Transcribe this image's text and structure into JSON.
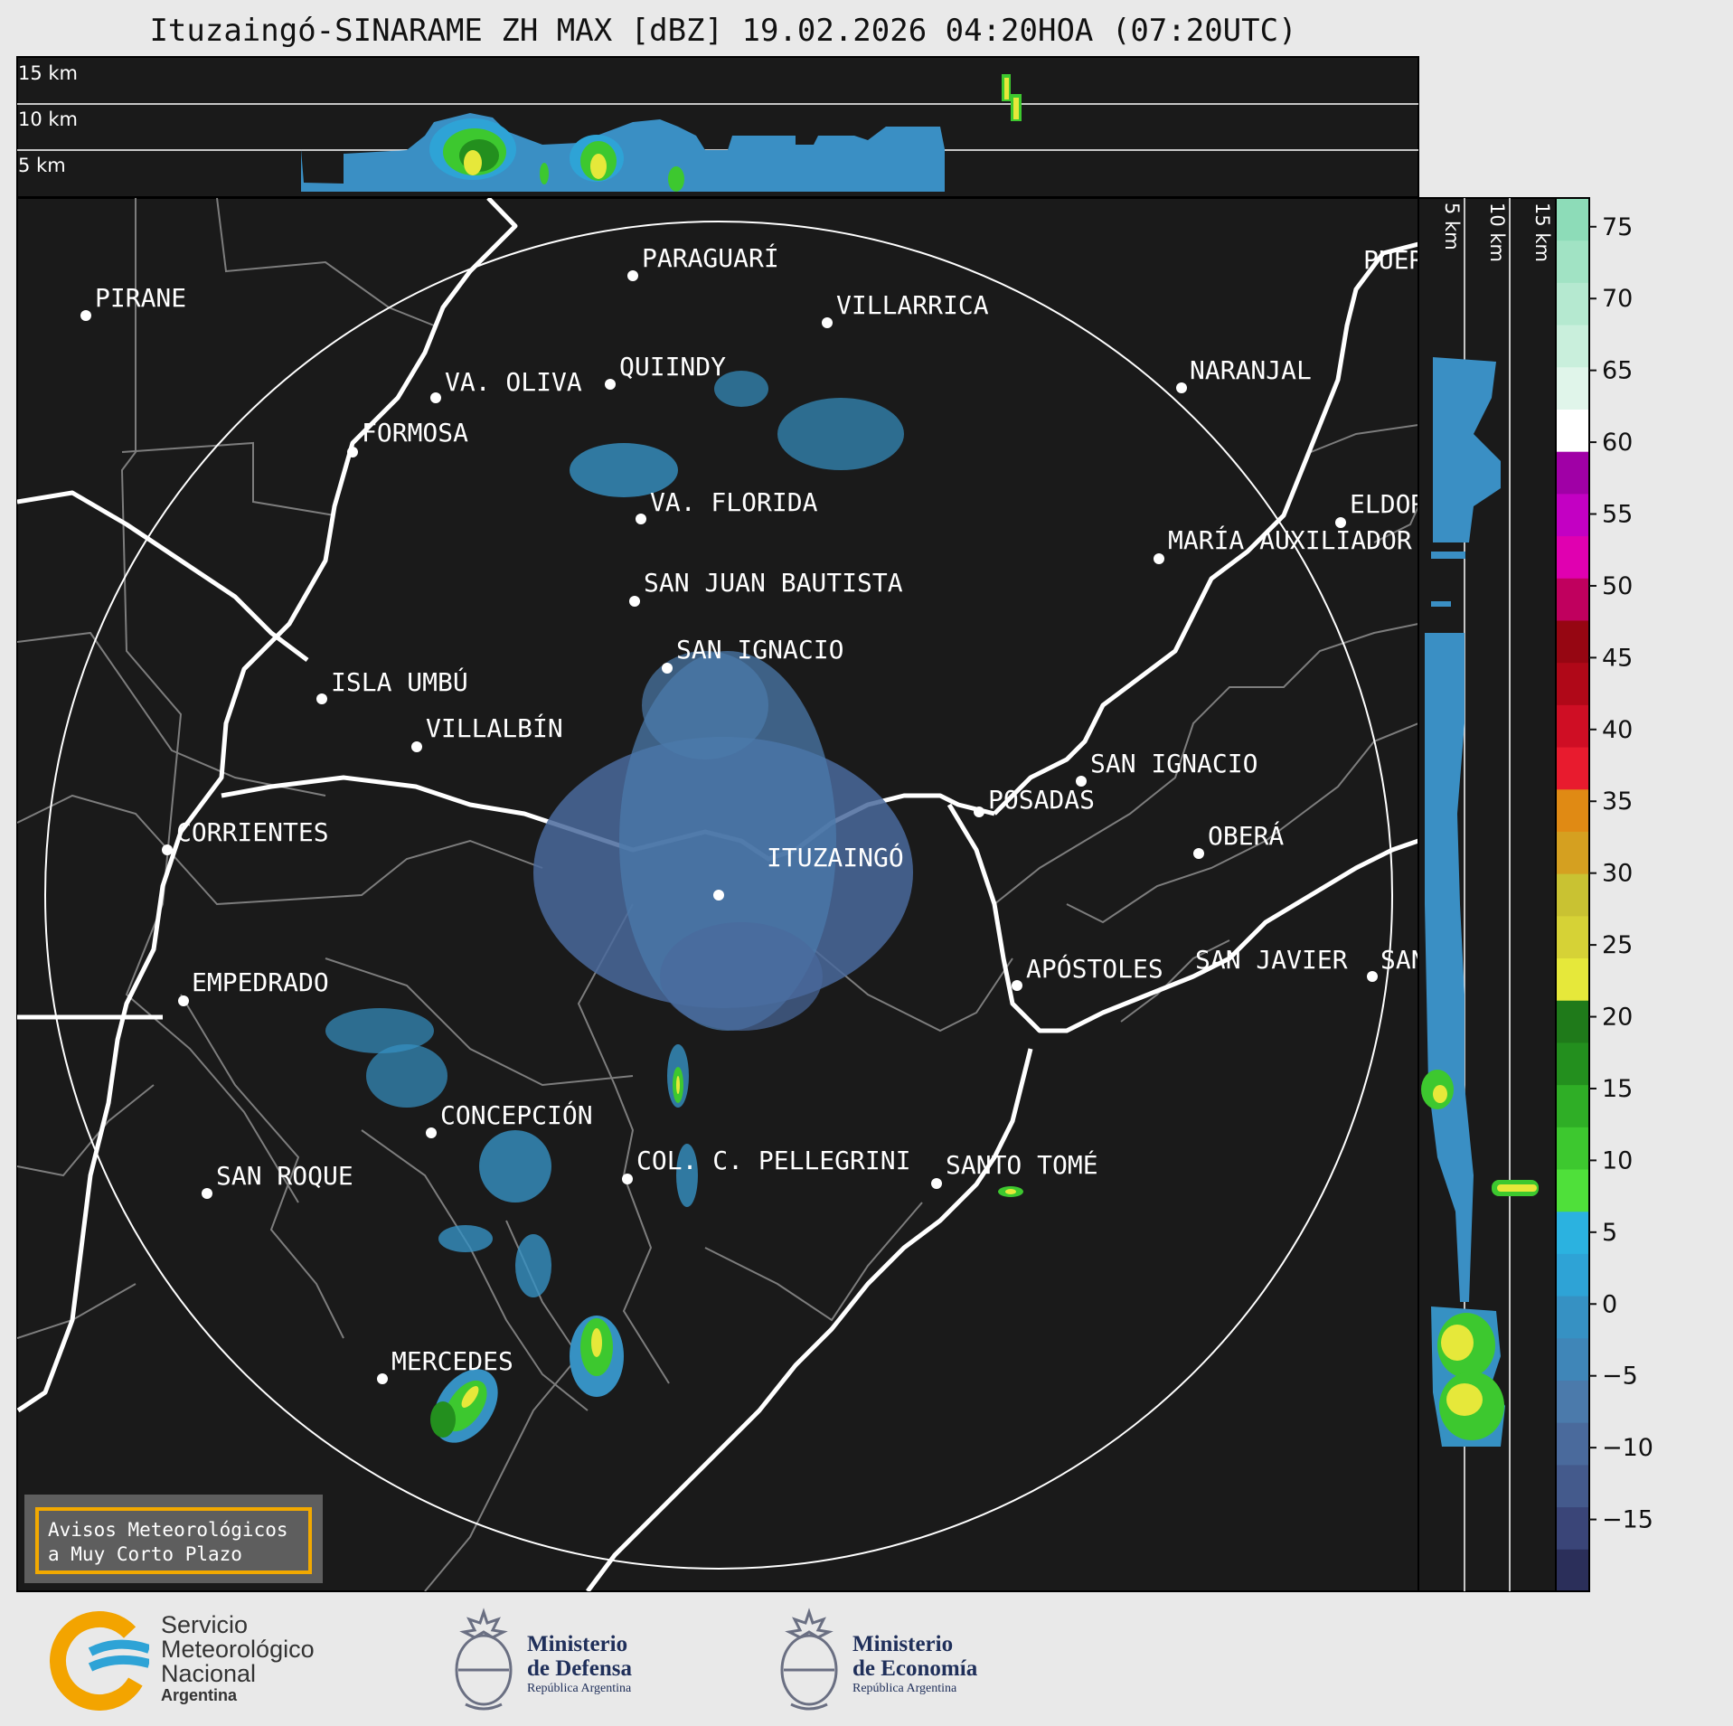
{
  "title": "Ituzaingó-SINARAME ZH MAX [dBZ] 19.02.2026 04:20HOA (07:20UTC)",
  "top_profile": {
    "height_labels": [
      "15 km",
      "10 km",
      "5 km"
    ]
  },
  "side_profile": {
    "height_labels": [
      "5 km",
      "10 km",
      "15 km"
    ]
  },
  "colorbar": {
    "unit": "dBZ",
    "ticks": [
      "75",
      "70",
      "65",
      "60",
      "55",
      "50",
      "45",
      "40",
      "35",
      "30",
      "25",
      "20",
      "15",
      "10",
      "5",
      "0",
      "−5",
      "−10",
      "−15"
    ],
    "colors": [
      "#2b2f5a",
      "#3a4578",
      "#445a8c",
      "#4a6a9c",
      "#4b7aab",
      "#3f86b8",
      "#3691c3",
      "#2ea3d6",
      "#2bb2e0",
      "#4fe03a",
      "#3dc82f",
      "#2fae26",
      "#238f1e",
      "#1f7a1a",
      "#e6e83a",
      "#d6d236",
      "#c9c232",
      "#d5a020",
      "#e08a14",
      "#e81b2e",
      "#cf0e24",
      "#b00818",
      "#960612",
      "#c0005e",
      "#e000b0",
      "#c300c3",
      "#a000a6",
      "#ffffff",
      "#e0f5ea",
      "#c9efdc",
      "#b5e9d0",
      "#a1e3c4",
      "#8ddcb8"
    ]
  },
  "map": {
    "radar_site": "ITUZAINGÓ",
    "range_ring": "visible",
    "cities": [
      {
        "name": "PIRANE"
      },
      {
        "name": "PARAGUARÍ"
      },
      {
        "name": "VILLARRICA"
      },
      {
        "name": "QUIINDY"
      },
      {
        "name": "VA. OLIVA"
      },
      {
        "name": "NARANJAL"
      },
      {
        "name": "FORMOSA"
      },
      {
        "name": "VA. FLORIDA"
      },
      {
        "name": "ELDOR"
      },
      {
        "name": "MARÍA AUXILIADOR"
      },
      {
        "name": "SAN JUAN BAUTISTA"
      },
      {
        "name": "SAN IGNACIO"
      },
      {
        "name": "ISLA UMBÚ"
      },
      {
        "name": "VILLALBÍN"
      },
      {
        "name": "SAN IGNACIO"
      },
      {
        "name": "POSADAS"
      },
      {
        "name": "CORRIENTES"
      },
      {
        "name": "ITUZAINGÓ"
      },
      {
        "name": "OBERÁ"
      },
      {
        "name": "EMPEDRADO"
      },
      {
        "name": "APÓSTOLES"
      },
      {
        "name": "SAN JAVIER"
      },
      {
        "name": "SAN"
      },
      {
        "name": "CONCEPCIÓN"
      },
      {
        "name": "SAN ROQUE"
      },
      {
        "name": "COL. C. PELLEGRINI"
      },
      {
        "name": "SANTO TOMÉ"
      },
      {
        "name": "MERCEDES"
      },
      {
        "name": "PUER"
      }
    ]
  },
  "warning_box": {
    "line1": "Avisos Meteorológicos",
    "line2": "a Muy Corto Plazo"
  },
  "logos": {
    "smn": {
      "line1": "Servicio",
      "line2": "Meteorológico",
      "line3": "Nacional",
      "line4": "Argentina"
    },
    "defensa": {
      "line1": "Ministerio",
      "line2": "de Defensa",
      "line3": "República Argentina"
    },
    "economia": {
      "line1": "Ministerio",
      "line2": "de Economía",
      "line3": "República Argentina"
    }
  }
}
